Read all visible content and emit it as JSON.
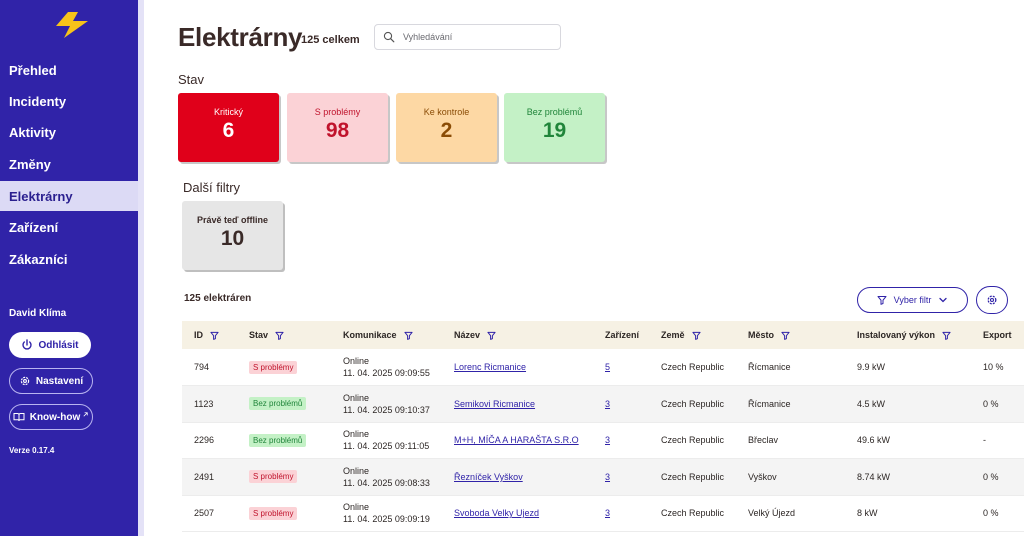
{
  "sidebar": {
    "items": [
      {
        "label": "Přehled"
      },
      {
        "label": "Incidenty"
      },
      {
        "label": "Aktivity"
      },
      {
        "label": "Změny"
      },
      {
        "label": "Elektrárny"
      },
      {
        "label": "Zařízení"
      },
      {
        "label": "Zákazníci"
      }
    ],
    "active_index": 4,
    "user_name": "David Klíma",
    "logout_label": "Odhlásit",
    "settings_label": "Nastavení",
    "knowhow_label": "Know-how",
    "version": "Verze 0.17.4",
    "colors": {
      "background": "#3023a8",
      "active_bg": "#dcdaf5",
      "logo": "#f7c31a"
    }
  },
  "header": {
    "title": "Elektrárny",
    "count": "125 celkem",
    "search_placeholder": "Vyhledávání"
  },
  "status_section": {
    "label": "Stav",
    "cards": [
      {
        "label": "Kritický",
        "value": "6",
        "color": "#e0001a"
      },
      {
        "label": "S problémy",
        "value": "98",
        "color": "#fbd2d6"
      },
      {
        "label": "Ke kontrole",
        "value": "2",
        "color": "#fdd8a4"
      },
      {
        "label": "Bez problémů",
        "value": "19",
        "color": "#c4f1c6"
      }
    ]
  },
  "other_filters": {
    "label": "Další filtry",
    "cards": [
      {
        "label": "Právě teď offline",
        "value": "10"
      }
    ]
  },
  "table_section": {
    "count_label": "125 elektráren",
    "filter_button": "Vyber filtr",
    "columns": [
      "ID",
      "Stav",
      "Komunikace",
      "Název",
      "Zařízení",
      "Země",
      "Město",
      "Instalovaný výkon",
      "Export"
    ],
    "rows": [
      {
        "id": "794",
        "status": "S problémy",
        "status_type": "problem",
        "comm_state": "Online",
        "comm_time": "11. 04. 2025 09:09:55",
        "name": "Lorenc Ricmanice",
        "devices": "5",
        "country": "Czech Republic",
        "city": "Řícmanice",
        "power": "9.9 kW",
        "export": "10 %"
      },
      {
        "id": "1123",
        "status": "Bez problémů",
        "status_type": "ok",
        "comm_state": "Online",
        "comm_time": "11. 04. 2025 09:10:37",
        "name": "Semikovi Ricmanice",
        "devices": "3",
        "country": "Czech Republic",
        "city": "Řícmanice",
        "power": "4.5 kW",
        "export": "0 %"
      },
      {
        "id": "2296",
        "status": "Bez problémů",
        "status_type": "ok",
        "comm_state": "Online",
        "comm_time": "11. 04. 2025 09:11:05",
        "name": "M+H, MÍČA A HARAŠTA S.R.O",
        "devices": "3",
        "country": "Czech Republic",
        "city": "Břeclav",
        "power": "49.6 kW",
        "export": "-"
      },
      {
        "id": "2491",
        "status": "S problémy",
        "status_type": "problem",
        "comm_state": "Online",
        "comm_time": "11. 04. 2025 09:08:33",
        "name": "Řezníček Vyškov",
        "devices": "3",
        "country": "Czech Republic",
        "city": "Vyškov",
        "power": "8.74 kW",
        "export": "0 %"
      },
      {
        "id": "2507",
        "status": "S problémy",
        "status_type": "problem",
        "comm_state": "Online",
        "comm_time": "11. 04. 2025 09:09:19",
        "name": "Svoboda Velky Ujezd",
        "devices": "3",
        "country": "Czech Republic",
        "city": "Velký Újezd",
        "power": "8 kW",
        "export": "0 %"
      }
    ]
  }
}
